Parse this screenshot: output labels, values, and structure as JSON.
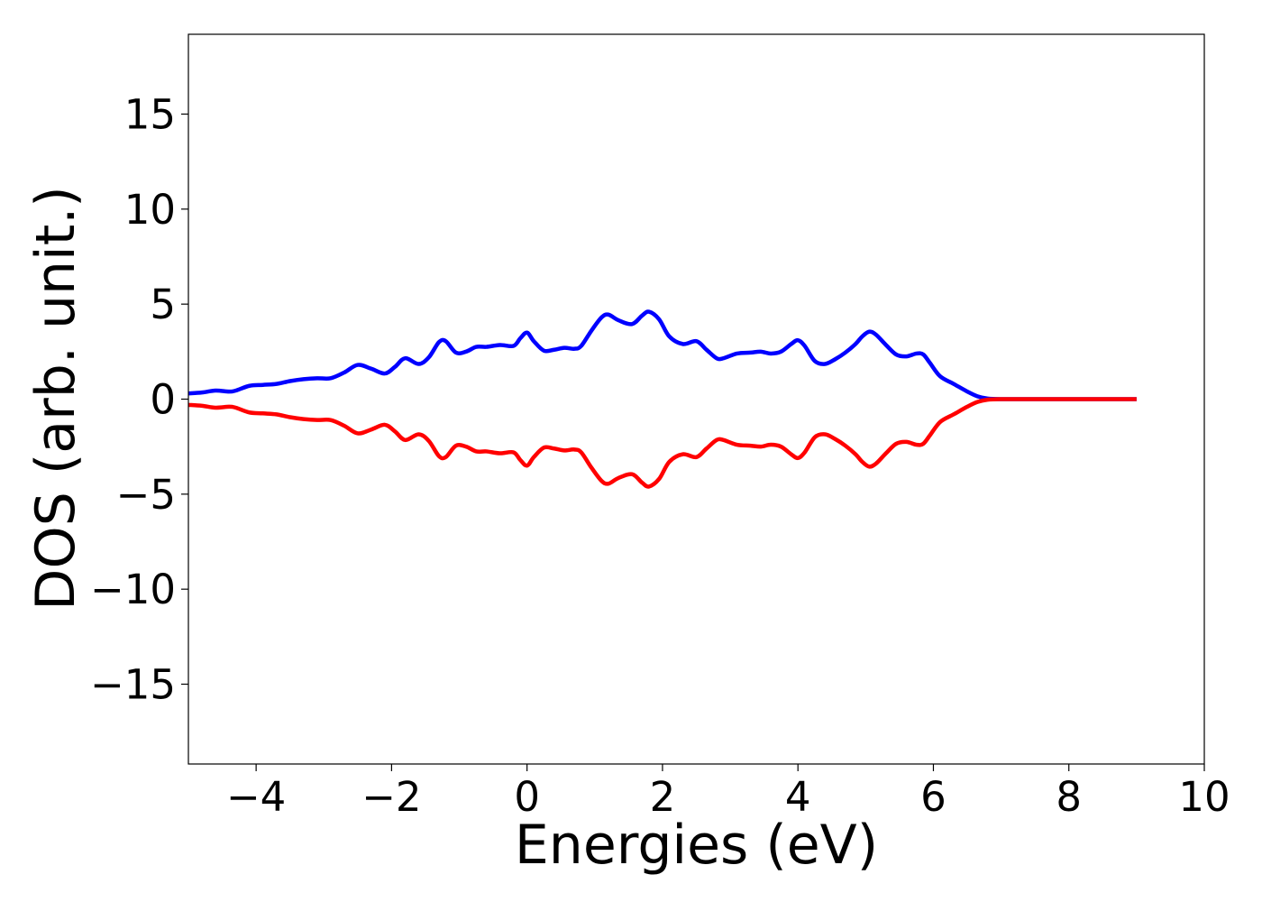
{
  "chart_data": {
    "type": "line",
    "title": "",
    "xlabel": "Energies (eV)",
    "ylabel": "DOS (arb. unit.)",
    "xlim": [
      -5,
      10
    ],
    "ylim": [
      -19.2,
      19.2
    ],
    "x_ticks": [
      {
        "value": -4,
        "label": "−4"
      },
      {
        "value": -2,
        "label": "−2"
      },
      {
        "value": 0,
        "label": "0"
      },
      {
        "value": 2,
        "label": "2"
      },
      {
        "value": 4,
        "label": "4"
      },
      {
        "value": 6,
        "label": "6"
      },
      {
        "value": 8,
        "label": "8"
      },
      {
        "value": 10,
        "label": "10"
      }
    ],
    "y_ticks": [
      {
        "value": 15,
        "label": "15"
      },
      {
        "value": 10,
        "label": "10"
      },
      {
        "value": 5,
        "label": "5"
      },
      {
        "value": 0,
        "label": "0"
      },
      {
        "value": -5,
        "label": "−5"
      },
      {
        "value": -10,
        "label": "−10"
      },
      {
        "value": -15,
        "label": "−15"
      }
    ],
    "grid": false,
    "legend": "none",
    "series": [
      {
        "color": "#0000ff",
        "x": [
          -5.0,
          -4.8,
          -4.6,
          -4.4,
          -4.3,
          -4.1,
          -3.9,
          -3.7,
          -3.5,
          -3.3,
          -3.1,
          -2.9,
          -2.7,
          -2.5,
          -2.3,
          -2.1,
          -1.95,
          -1.8,
          -1.6,
          -1.45,
          -1.3,
          -1.2,
          -1.05,
          -0.9,
          -0.75,
          -0.6,
          -0.4,
          -0.2,
          -0.1,
          0.0,
          0.1,
          0.25,
          0.4,
          0.55,
          0.7,
          0.8,
          0.95,
          1.1,
          1.2,
          1.35,
          1.55,
          1.7,
          1.8,
          1.95,
          2.1,
          2.3,
          2.5,
          2.65,
          2.8,
          2.9,
          3.1,
          3.3,
          3.45,
          3.6,
          3.75,
          3.9,
          4.0,
          4.1,
          4.25,
          4.4,
          4.55,
          4.7,
          4.85,
          4.95,
          5.05,
          5.15,
          5.3,
          5.45,
          5.6,
          5.75,
          5.85,
          5.95,
          6.1,
          6.3,
          6.5,
          6.65,
          6.8,
          7.0,
          7.5,
          8.0,
          8.5,
          9.0
        ],
        "y": [
          0.3,
          0.35,
          0.45,
          0.4,
          0.45,
          0.7,
          0.75,
          0.8,
          0.95,
          1.05,
          1.1,
          1.1,
          1.4,
          1.8,
          1.6,
          1.35,
          1.7,
          2.15,
          1.85,
          2.2,
          3.0,
          3.05,
          2.45,
          2.5,
          2.75,
          2.75,
          2.85,
          2.8,
          3.2,
          3.5,
          3.05,
          2.55,
          2.6,
          2.7,
          2.65,
          2.8,
          3.6,
          4.3,
          4.45,
          4.15,
          3.95,
          4.4,
          4.6,
          4.2,
          3.3,
          2.9,
          3.05,
          2.6,
          2.15,
          2.15,
          2.4,
          2.45,
          2.5,
          2.4,
          2.5,
          2.9,
          3.1,
          2.8,
          2.0,
          1.85,
          2.1,
          2.45,
          2.9,
          3.3,
          3.55,
          3.4,
          2.85,
          2.35,
          2.25,
          2.4,
          2.35,
          1.9,
          1.2,
          0.8,
          0.4,
          0.15,
          0.03,
          0.0,
          0.0,
          0.0,
          0.0,
          0.0
        ]
      },
      {
        "color": "#ff0000",
        "x": [
          -5.0,
          -4.8,
          -4.6,
          -4.4,
          -4.3,
          -4.1,
          -3.9,
          -3.7,
          -3.5,
          -3.3,
          -3.1,
          -2.9,
          -2.7,
          -2.5,
          -2.3,
          -2.1,
          -1.95,
          -1.8,
          -1.6,
          -1.45,
          -1.3,
          -1.2,
          -1.05,
          -0.9,
          -0.75,
          -0.6,
          -0.4,
          -0.2,
          -0.1,
          0.0,
          0.1,
          0.25,
          0.4,
          0.55,
          0.7,
          0.8,
          0.95,
          1.1,
          1.2,
          1.35,
          1.55,
          1.7,
          1.8,
          1.95,
          2.1,
          2.3,
          2.5,
          2.65,
          2.8,
          2.9,
          3.1,
          3.3,
          3.45,
          3.6,
          3.75,
          3.9,
          4.0,
          4.1,
          4.25,
          4.4,
          4.55,
          4.7,
          4.85,
          4.95,
          5.05,
          5.15,
          5.3,
          5.45,
          5.6,
          5.75,
          5.85,
          5.95,
          6.1,
          6.3,
          6.5,
          6.65,
          6.8,
          7.0,
          7.5,
          8.0,
          8.5,
          9.0
        ],
        "y": [
          -0.3,
          -0.35,
          -0.45,
          -0.4,
          -0.45,
          -0.7,
          -0.75,
          -0.8,
          -0.95,
          -1.05,
          -1.1,
          -1.1,
          -1.4,
          -1.8,
          -1.6,
          -1.35,
          -1.7,
          -2.15,
          -1.85,
          -2.2,
          -3.0,
          -3.05,
          -2.45,
          -2.5,
          -2.75,
          -2.75,
          -2.85,
          -2.8,
          -3.2,
          -3.5,
          -3.05,
          -2.55,
          -2.6,
          -2.7,
          -2.65,
          -2.8,
          -3.6,
          -4.3,
          -4.45,
          -4.15,
          -3.95,
          -4.4,
          -4.6,
          -4.2,
          -3.3,
          -2.9,
          -3.05,
          -2.6,
          -2.15,
          -2.15,
          -2.4,
          -2.45,
          -2.5,
          -2.4,
          -2.5,
          -2.9,
          -3.1,
          -2.8,
          -2.0,
          -1.85,
          -2.1,
          -2.45,
          -2.9,
          -3.3,
          -3.55,
          -3.4,
          -2.85,
          -2.35,
          -2.25,
          -2.4,
          -2.35,
          -1.9,
          -1.2,
          -0.8,
          -0.4,
          -0.15,
          -0.03,
          0.0,
          0.0,
          0.0,
          0.0,
          0.0
        ]
      }
    ]
  }
}
